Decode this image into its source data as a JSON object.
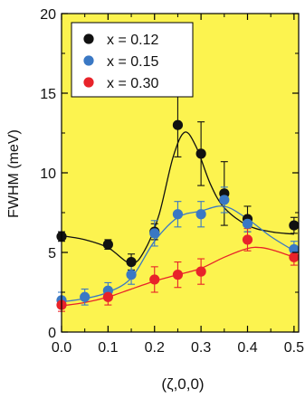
{
  "chart_data": {
    "type": "scatter",
    "xlabel": "(ζ,0,0)",
    "ylabel": "FWHM (meV)",
    "xlim": [
      0,
      0.51
    ],
    "ylim": [
      0,
      20
    ],
    "x_ticks": [
      0.0,
      0.1,
      0.2,
      0.3,
      0.4,
      0.5
    ],
    "x_tick_labels": [
      "0.0",
      "0.1",
      "0.2",
      "0.3",
      "0.4",
      "0.5"
    ],
    "y_ticks": [
      0,
      5,
      10,
      15,
      20
    ],
    "y_tick_labels": [
      "0",
      "5",
      "10",
      "15",
      "20"
    ],
    "grid": false,
    "legend_position": "top-left",
    "background_color": "#fcf34f",
    "series": [
      {
        "name": "x = 0.12",
        "color": "#111111",
        "points": [
          {
            "x": 0.0,
            "y": 6.0,
            "err": 0.3
          },
          {
            "x": 0.1,
            "y": 5.5,
            "err": 0.3
          },
          {
            "x": 0.15,
            "y": 4.4,
            "err": 0.5
          },
          {
            "x": 0.2,
            "y": 6.3,
            "err": 0.5
          },
          {
            "x": 0.25,
            "y": 13.0,
            "err": 2.0
          },
          {
            "x": 0.3,
            "y": 11.2,
            "err": 2.0
          },
          {
            "x": 0.35,
            "y": 8.7,
            "err": 2.0
          },
          {
            "x": 0.4,
            "y": 7.1,
            "err": 0.8
          },
          {
            "x": 0.5,
            "y": 6.7,
            "err": 0.5
          }
        ],
        "curve": [
          [
            0.0,
            6.05
          ],
          [
            0.05,
            5.8
          ],
          [
            0.1,
            5.3
          ],
          [
            0.15,
            4.3
          ],
          [
            0.18,
            5.2
          ],
          [
            0.21,
            7.4
          ],
          [
            0.24,
            11.0
          ],
          [
            0.265,
            12.55
          ],
          [
            0.29,
            11.6
          ],
          [
            0.32,
            9.3
          ],
          [
            0.35,
            7.8
          ],
          [
            0.4,
            6.7
          ],
          [
            0.45,
            6.3
          ],
          [
            0.5,
            6.15
          ]
        ]
      },
      {
        "name": "x = 0.15",
        "color": "#3a78c4",
        "points": [
          {
            "x": 0.0,
            "y": 2.0,
            "err": 0.5
          },
          {
            "x": 0.05,
            "y": 2.2,
            "err": 0.5
          },
          {
            "x": 0.1,
            "y": 2.6,
            "err": 0.5
          },
          {
            "x": 0.15,
            "y": 3.6,
            "err": 0.6
          },
          {
            "x": 0.2,
            "y": 6.2,
            "err": 0.8
          },
          {
            "x": 0.25,
            "y": 7.4,
            "err": 0.8
          },
          {
            "x": 0.3,
            "y": 7.4,
            "err": 0.8
          },
          {
            "x": 0.35,
            "y": 8.3,
            "err": 0.8
          },
          {
            "x": 0.4,
            "y": 6.8,
            "err": 0.5
          },
          {
            "x": 0.5,
            "y": 5.2,
            "err": 0.5
          }
        ],
        "curve": [
          [
            0.0,
            1.9
          ],
          [
            0.05,
            2.1
          ],
          [
            0.1,
            2.5
          ],
          [
            0.15,
            3.4
          ],
          [
            0.2,
            5.7
          ],
          [
            0.25,
            7.2
          ],
          [
            0.3,
            7.6
          ],
          [
            0.35,
            7.9
          ],
          [
            0.4,
            7.1
          ],
          [
            0.45,
            6.0
          ],
          [
            0.5,
            5.1
          ]
        ]
      },
      {
        "name": "x = 0.30",
        "color": "#e8232a",
        "points": [
          {
            "x": 0.0,
            "y": 1.7,
            "err": 0.4
          },
          {
            "x": 0.1,
            "y": 2.2,
            "err": 0.5
          },
          {
            "x": 0.2,
            "y": 3.3,
            "err": 0.8
          },
          {
            "x": 0.25,
            "y": 3.6,
            "err": 0.8
          },
          {
            "x": 0.3,
            "y": 3.8,
            "err": 0.8
          },
          {
            "x": 0.4,
            "y": 5.8,
            "err": 0.7
          },
          {
            "x": 0.5,
            "y": 4.7,
            "err": 0.5
          }
        ],
        "curve": [
          [
            0.0,
            1.65
          ],
          [
            0.05,
            1.85
          ],
          [
            0.1,
            2.2
          ],
          [
            0.15,
            2.7
          ],
          [
            0.2,
            3.2
          ],
          [
            0.25,
            3.6
          ],
          [
            0.3,
            4.0
          ],
          [
            0.35,
            4.7
          ],
          [
            0.4,
            5.25
          ],
          [
            0.43,
            5.3
          ],
          [
            0.46,
            5.1
          ],
          [
            0.5,
            4.7
          ]
        ]
      }
    ]
  }
}
